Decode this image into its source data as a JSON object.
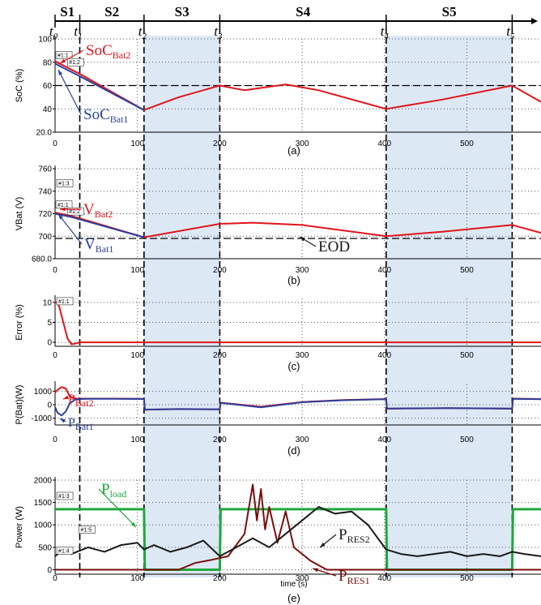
{
  "colors": {
    "bat2": "#e0151b",
    "bat1": "#2b3f9c",
    "load": "#1ea83c",
    "res1": "#7a0d0d",
    "res2": "#1a1a1a",
    "shade": "#dde8f5",
    "grid": "#555555"
  },
  "phases": [
    {
      "label": "S1",
      "from": 0,
      "to": 30
    },
    {
      "label": "S2",
      "from": 30,
      "to": 108
    },
    {
      "label": "S3",
      "from": 108,
      "to": 200
    },
    {
      "label": "S4",
      "from": 200,
      "to": 402
    },
    {
      "label": "S5",
      "from": 402,
      "to": 555
    }
  ],
  "time_marks": [
    {
      "label": "t",
      "sub": "0",
      "x": 0
    },
    {
      "label": "t",
      "sub": "1",
      "x": 30
    },
    {
      "label": "t",
      "sub": "2",
      "x": 108
    },
    {
      "label": "t",
      "sub": "3",
      "x": 200
    },
    {
      "label": "t",
      "sub": "4",
      "x": 402
    },
    {
      "label": "t",
      "sub": "5",
      "x": 555
    }
  ],
  "shaded_intervals": [
    [
      108,
      200
    ],
    [
      402,
      555
    ]
  ],
  "x_axis": {
    "label": "time (s)",
    "range": [
      0,
      590
    ],
    "ticks": [
      "0",
      "100",
      "200",
      "300",
      "400",
      "500"
    ],
    "tick_values": [
      0,
      100,
      200,
      300,
      400,
      500
    ]
  },
  "chart_data": [
    {
      "type": "line",
      "caption": "(a)",
      "ylabel": "SoC (%)",
      "ylim": [
        20,
        100
      ],
      "yticks": [
        "20.0",
        "40",
        "60",
        "80",
        "100"
      ],
      "ytick_values": [
        20,
        40,
        60,
        80,
        100
      ],
      "reference_line": 60,
      "markers": [
        {
          "text": "#1:1",
          "x": 2,
          "y": 85
        },
        {
          "text": "#1:2",
          "x": 16,
          "y": 79
        }
      ],
      "annotations": [
        {
          "main": "SoC",
          "sub": "Bat2",
          "color_key": "bat2"
        },
        {
          "main": "SoC",
          "sub": "Bat1",
          "color_key": "bat1"
        }
      ],
      "series": [
        {
          "name": "SoC Bat2",
          "color_key": "bat2",
          "x": [
            0,
            5,
            30,
            108,
            150,
            200,
            230,
            280,
            320,
            402,
            470,
            555,
            590
          ],
          "y": [
            81,
            79,
            70,
            39,
            50,
            60,
            56,
            61,
            56,
            40,
            48,
            60,
            46
          ]
        },
        {
          "name": "SoC Bat1",
          "color_key": "bat1",
          "x": [
            0,
            5,
            30,
            108
          ],
          "y": [
            79,
            77,
            68,
            39
          ]
        }
      ]
    },
    {
      "type": "line",
      "caption": "(b)",
      "ylabel": "VBat (V)",
      "ylim": [
        680,
        760
      ],
      "yticks": [
        "680.0",
        "700",
        "720",
        "740",
        "760"
      ],
      "ytick_values": [
        680,
        700,
        720,
        740,
        760
      ],
      "reference_line": 698,
      "markers": [
        {
          "text": "#1:3",
          "x": 3,
          "y": 746
        },
        {
          "text": "#1:1",
          "x": 2,
          "y": 727
        },
        {
          "text": "#1:2",
          "x": 16,
          "y": 721
        }
      ],
      "annotations": [
        {
          "main": "V",
          "sub": "Bat2",
          "color_key": "bat2"
        },
        {
          "main": "V",
          "sub": "Bat1",
          "color_key": "bat1"
        },
        {
          "main": "EOD",
          "sub": "",
          "color_key": "res2"
        }
      ],
      "series": [
        {
          "name": "VBat2",
          "color_key": "bat2",
          "x": [
            0,
            20,
            108,
            200,
            240,
            300,
            402,
            470,
            555,
            590
          ],
          "y": [
            721,
            718,
            699,
            711,
            712,
            710,
            700,
            704,
            710,
            703
          ]
        },
        {
          "name": "VBat1",
          "color_key": "bat1",
          "x": [
            0,
            20,
            108
          ],
          "y": [
            720,
            717,
            699
          ]
        }
      ]
    },
    {
      "type": "line",
      "caption": "(c)",
      "ylabel": "Error (%)",
      "ylim": [
        -1,
        11
      ],
      "yticks": [
        "0",
        "5",
        "10"
      ],
      "ytick_values": [
        0,
        5,
        10
      ],
      "markers": [
        {
          "text": "#1:1",
          "x": 3,
          "y": 10
        }
      ],
      "series": [
        {
          "name": "Error",
          "color_key": "bat2",
          "x": [
            0,
            2,
            5,
            10,
            15,
            20,
            25,
            30,
            40,
            590
          ],
          "y": [
            10,
            10,
            9,
            5,
            1,
            -0.5,
            -0.3,
            0,
            0,
            0
          ]
        }
      ]
    },
    {
      "type": "line",
      "caption": "(d)",
      "ylabel": "P(Bat)(W)",
      "ylim": [
        -1500,
        1500
      ],
      "yticks": [
        "-1000",
        "0",
        "1000"
      ],
      "ytick_values": [
        -1000,
        0,
        1000
      ],
      "annotations": [
        {
          "main": "P",
          "sub": "Bat2",
          "color_key": "bat2"
        },
        {
          "main": "P",
          "sub": "Bat1",
          "color_key": "bat1"
        }
      ],
      "series": [
        {
          "name": "PBat2",
          "color_key": "bat2",
          "x": [
            0,
            3,
            8,
            13,
            18,
            25,
            40,
            70,
            108,
            109,
            150,
            200,
            201,
            250,
            300,
            350,
            402,
            403,
            480,
            555,
            556,
            590
          ],
          "y": [
            900,
            1100,
            1300,
            1200,
            600,
            450,
            450,
            450,
            430,
            -380,
            -320,
            -350,
            150,
            -150,
            200,
            350,
            420,
            -300,
            -250,
            -300,
            450,
            420
          ]
        },
        {
          "name": "PBat1",
          "color_key": "bat1",
          "x": [
            0,
            3,
            8,
            13,
            18,
            25,
            40,
            70,
            108,
            109,
            150,
            200,
            201,
            250,
            300,
            350,
            402,
            403,
            480,
            555,
            556,
            590
          ],
          "y": [
            -200,
            -600,
            -800,
            -500,
            100,
            400,
            430,
            440,
            420,
            -360,
            -330,
            -340,
            140,
            -200,
            180,
            330,
            400,
            -280,
            -260,
            -290,
            430,
            410
          ]
        }
      ]
    },
    {
      "type": "line",
      "caption": "(e)",
      "ylabel": "Power (W)",
      "ylim": [
        -100,
        2000
      ],
      "yticks": [
        "0",
        "500",
        "1000",
        "1500",
        "2000"
      ],
      "ytick_values": [
        0,
        500,
        1000,
        1500,
        2000
      ],
      "markers": [
        {
          "text": "#1:3",
          "x": 3,
          "y": 1620
        },
        {
          "text": "#1:5",
          "x": 30,
          "y": 870
        },
        {
          "text": "#1:4",
          "x": 3,
          "y": 400
        }
      ],
      "annotations": [
        {
          "main": "P",
          "sub": "load",
          "color_key": "load"
        },
        {
          "main": "P",
          "sub": "RES2",
          "color_key": "res2"
        },
        {
          "main": "P",
          "sub": "RES1",
          "color_key": "res1"
        }
      ],
      "series": [
        {
          "name": "Pload",
          "color_key": "load",
          "x": [
            0,
            108,
            109,
            200,
            201,
            402,
            403,
            555,
            556,
            590
          ],
          "y": [
            1350,
            1350,
            0,
            0,
            1350,
            1350,
            0,
            0,
            1350,
            1350
          ]
        },
        {
          "name": "PRES1",
          "color_key": "res1",
          "x": [
            0,
            150,
            170,
            190,
            210,
            230,
            240,
            245,
            250,
            255,
            260,
            270,
            280,
            290,
            300,
            310,
            320,
            330,
            402,
            590
          ],
          "y": [
            0,
            0,
            150,
            220,
            300,
            800,
            1900,
            1100,
            1800,
            900,
            1400,
            600,
            1300,
            500,
            350,
            200,
            100,
            0,
            0,
            0
          ]
        },
        {
          "name": "PRES2",
          "color_key": "res2",
          "x": [
            0,
            10,
            20,
            40,
            60,
            80,
            100,
            108,
            120,
            140,
            160,
            180,
            200,
            220,
            240,
            260,
            280,
            300,
            320,
            340,
            360,
            380,
            402,
            420,
            440,
            460,
            480,
            500,
            520,
            540,
            555,
            570,
            590
          ],
          "y": [
            300,
            450,
            350,
            500,
            400,
            550,
            600,
            450,
            550,
            400,
            500,
            650,
            300,
            500,
            700,
            500,
            800,
            1100,
            1400,
            1250,
            1300,
            1000,
            450,
            350,
            300,
            350,
            400,
            300,
            350,
            300,
            400,
            350,
            300
          ]
        }
      ]
    }
  ]
}
